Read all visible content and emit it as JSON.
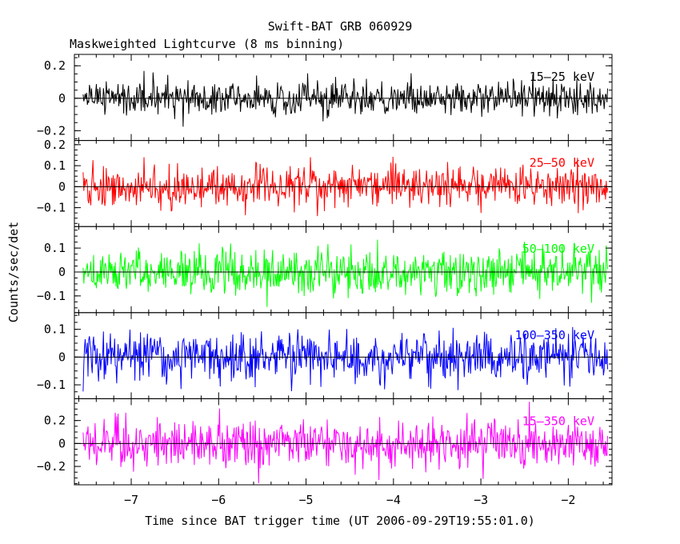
{
  "chart_data": {
    "type": "line",
    "title": "Swift-BAT GRB 060929",
    "subtitle": "Maskweighted Lightcurve (8 ms binning)",
    "xlabel": "Time since BAT trigger time (UT 2006-09-29T19:55:01.0)",
    "ylabel": "Counts/sec/det",
    "xlim": [
      -7.65,
      -1.5
    ],
    "x_ticks": [
      -7,
      -6,
      -5,
      -4,
      -3,
      -2
    ],
    "x_tick_labels": [
      "−7",
      "−6",
      "−5",
      "−4",
      "−3",
      "−2"
    ],
    "data_x_range": [
      -7.55,
      -1.55
    ],
    "bin_width": 0.008,
    "grid": false,
    "panels": [
      {
        "name": "15–25 keV",
        "color": "#000000",
        "ylim": [
          -0.26,
          0.27
        ],
        "y_ticks": [
          -0.2,
          0,
          0.2
        ],
        "y_tick_labels": [
          "−0.2",
          "0",
          "0.2"
        ],
        "noise_sigma": 0.055
      },
      {
        "name": "25–50 keV",
        "color": "#ff0000",
        "ylim": [
          -0.19,
          0.22
        ],
        "y_ticks": [
          -0.1,
          0,
          0.1,
          0.2
        ],
        "y_tick_labels": [
          "−0.1",
          "0",
          "0.1",
          "0.2"
        ],
        "noise_sigma": 0.05
      },
      {
        "name": "50–100 keV",
        "color": "#00ff00",
        "ylim": [
          -0.17,
          0.19
        ],
        "y_ticks": [
          -0.1,
          0,
          0.1
        ],
        "y_tick_labels": [
          "−0.1",
          "0",
          "0.1"
        ],
        "noise_sigma": 0.048
      },
      {
        "name": "100–350 keV",
        "color": "#0000ff",
        "ylim": [
          -0.15,
          0.16
        ],
        "y_ticks": [
          -0.1,
          0,
          0.1
        ],
        "y_tick_labels": [
          "−0.1",
          "0",
          "0.1"
        ],
        "noise_sigma": 0.045
      },
      {
        "name": "15–350 keV",
        "color": "#ff00ff",
        "ylim": [
          -0.36,
          0.39
        ],
        "y_ticks": [
          -0.2,
          0,
          0.2
        ],
        "y_tick_labels": [
          "−0.2",
          "0",
          "0.2"
        ],
        "noise_sigma": 0.1
      }
    ]
  }
}
